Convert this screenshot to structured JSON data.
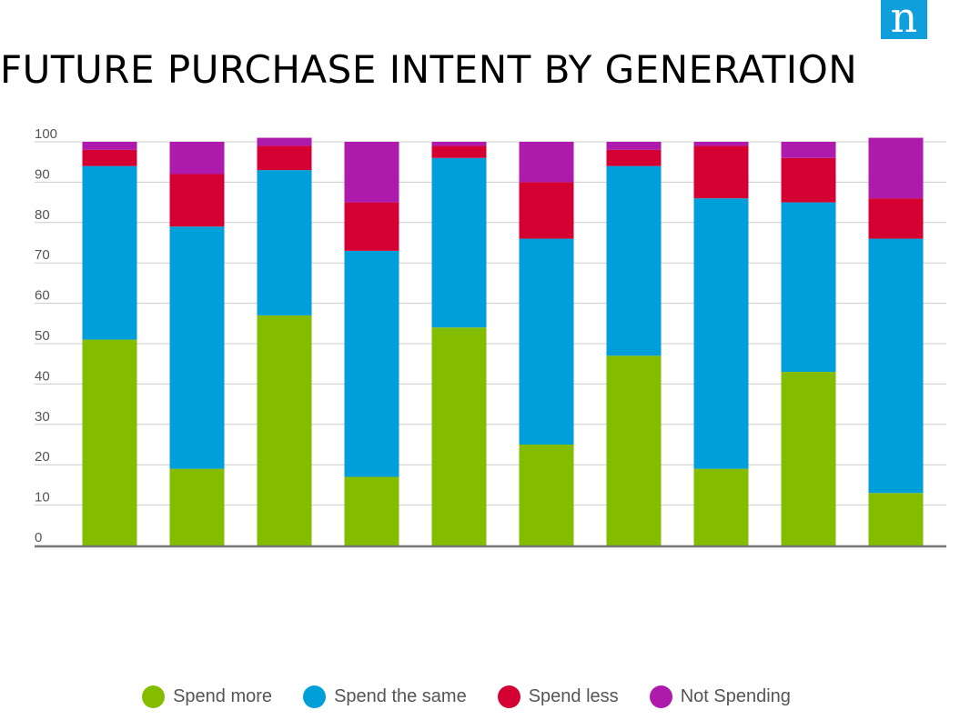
{
  "logo": {
    "glyph": "n"
  },
  "chart_data": {
    "type": "bar",
    "stacked": true,
    "title": "FUTURE PURCHASE INTENT BY GENERATION",
    "xlabel": "",
    "ylabel": "",
    "ylim": [
      0,
      100
    ],
    "yticks": [
      0,
      10,
      20,
      30,
      40,
      50,
      60,
      70,
      80,
      90,
      100
    ],
    "grid": true,
    "legend_position": "bottom",
    "categories": [
      "",
      "",
      "",
      "",
      "",
      "",
      "",
      "",
      "",
      ""
    ],
    "series": [
      {
        "name": "Spend more",
        "color": "#84bd00",
        "values": [
          51,
          19,
          57,
          17,
          54,
          25,
          47,
          19,
          43,
          13
        ]
      },
      {
        "name": "Spend the same",
        "color": "#009fda",
        "values": [
          43,
          60,
          36,
          56,
          42,
          51,
          47,
          67,
          42,
          63
        ]
      },
      {
        "name": "Spend less",
        "color": "#d50032",
        "values": [
          4,
          13,
          6,
          12,
          3,
          14,
          4,
          13,
          11,
          10
        ]
      },
      {
        "name": "Not Spending",
        "color": "#ad1aac",
        "values": [
          2,
          8,
          2,
          15,
          1,
          10,
          2,
          1,
          4,
          15
        ]
      }
    ]
  }
}
